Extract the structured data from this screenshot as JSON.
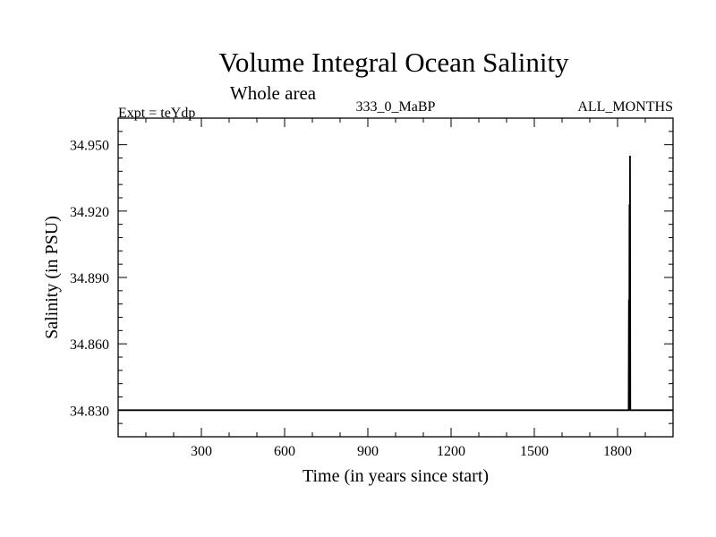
{
  "chart_data": {
    "type": "line",
    "title": "Volume Integral Ocean Salinity",
    "subtitle": "Whole area",
    "header_left": "Expt = teYdp",
    "header_center": "333_0_MaBP",
    "header_right": "ALL_MONTHS",
    "xlabel": "Time (in years since start)",
    "ylabel": "Salinity (in PSU)",
    "xlim": [
      0,
      2000
    ],
    "ylim": [
      34.818,
      34.962
    ],
    "xticks": [
      300,
      600,
      900,
      1200,
      1500,
      1800
    ],
    "xtick_labels": [
      "300",
      "600",
      "900",
      "1200",
      "1500",
      "1800"
    ],
    "yticks": [
      34.83,
      34.86,
      34.89,
      34.92,
      34.95
    ],
    "ytick_labels": [
      "34.830",
      "34.860",
      "34.890",
      "34.920",
      "34.950"
    ],
    "grid": false,
    "series": [
      {
        "x": [
          0,
          1840,
          1841,
          1842,
          1843,
          1844,
          1845,
          1846,
          2000
        ],
        "y": [
          34.83,
          34.83,
          34.88,
          34.83,
          34.923,
          34.83,
          34.945,
          34.83,
          34.83
        ],
        "color": "#000000"
      }
    ]
  }
}
